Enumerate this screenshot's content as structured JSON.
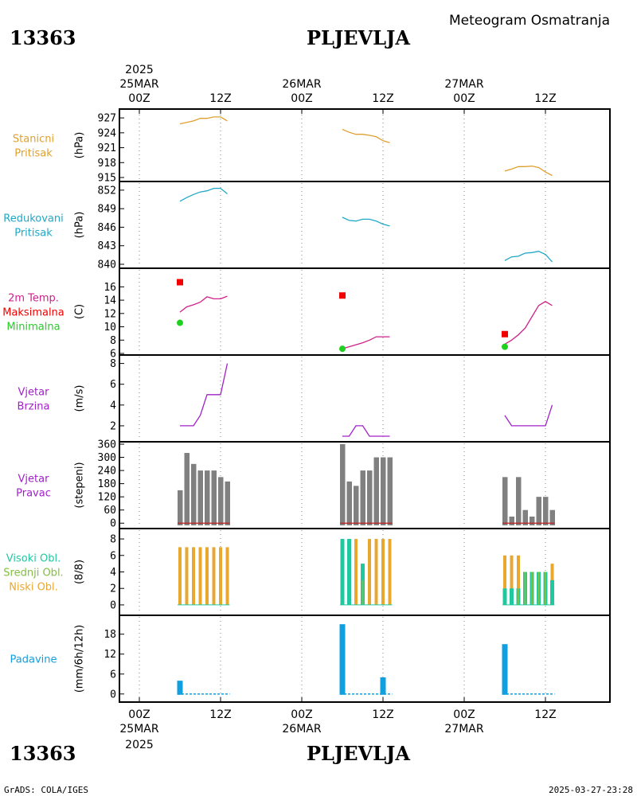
{
  "header": {
    "station_id": "13363",
    "station_name": "PLJEVLJA",
    "subtitle": "Meteogram Osmatranja"
  },
  "footer": {
    "credit": "GrADS: COLA/IGES",
    "timestamp": "2025-03-27-23:28"
  },
  "time_axis": {
    "year": "2025",
    "days": [
      {
        "date": "25MAR",
        "ticks": [
          "00Z",
          "12Z"
        ]
      },
      {
        "date": "26MAR",
        "ticks": [
          "00Z",
          "12Z"
        ]
      },
      {
        "date": "27MAR",
        "ticks": [
          "00Z",
          "12Z"
        ]
      }
    ]
  },
  "colors": {
    "pressure_station": "#e0a030",
    "pressure_reduced": "#20a8c8",
    "temperature": "#d0208a",
    "max_marker": "#f00000",
    "min_marker": "#20d020",
    "wind": "#a020c8",
    "wind_dir_bars": "#808080",
    "cloud_high": "#20c8a0",
    "cloud_mid": "#80c040",
    "cloud_low": "#e8a830",
    "precip": "#10a0e0"
  },
  "panels": [
    {
      "id": "p1",
      "labels": [
        "Stanicni",
        "Pritisak"
      ],
      "unit": "(hPa)",
      "ticks": [
        "927",
        "924",
        "921",
        "918",
        "915"
      ]
    },
    {
      "id": "p2",
      "labels": [
        "Redukovani",
        "Pritisak"
      ],
      "unit": "(hPa)",
      "ticks": [
        "852",
        "849",
        "846",
        "843",
        "840"
      ]
    },
    {
      "id": "p3",
      "labels": [
        "2m Temp.",
        "Maksimalna",
        "Minimalna"
      ],
      "unit": "(C)",
      "ticks": [
        "16",
        "14",
        "12",
        "10",
        "8",
        "6"
      ]
    },
    {
      "id": "p4",
      "labels": [
        "Vjetar",
        "Brzina"
      ],
      "unit": "(m/s)",
      "ticks": [
        "8",
        "6",
        "4",
        "2"
      ]
    },
    {
      "id": "p5",
      "labels": [
        "Vjetar",
        "Pravac"
      ],
      "unit": "(stepeni)",
      "ticks": [
        "360",
        "300",
        "240",
        "180",
        "120",
        "60",
        "0"
      ]
    },
    {
      "id": "p6",
      "labels": [
        "Visoki Obl.",
        "Srednji Obl.",
        "Niski Obl."
      ],
      "unit": "(8/8)",
      "ticks": [
        "8",
        "6",
        "4",
        "2",
        "0"
      ]
    },
    {
      "id": "p7",
      "labels": [
        "Padavine"
      ],
      "unit": "(mm/6h/12h)",
      "ticks": [
        "18",
        "12",
        "6",
        "0"
      ]
    }
  ],
  "chart_data": [
    {
      "type": "line",
      "title": "Stanicni Pritisak",
      "ylabel": "(hPa)",
      "ylim": [
        915,
        927.5
      ],
      "x_unit": "hours since 2025-03-25 00Z",
      "series": [
        {
          "segments": [
            [
              [
                6,
                925.8
              ],
              [
                7,
                926.1
              ],
              [
                8,
                926.4
              ],
              [
                9,
                926.9
              ],
              [
                10,
                926.9
              ],
              [
                11,
                927.2
              ],
              [
                12,
                927.2
              ],
              [
                13,
                926.4
              ]
            ],
            [
              [
                30,
                924.7
              ],
              [
                31,
                924.1
              ],
              [
                32,
                923.7
              ],
              [
                33,
                923.7
              ],
              [
                34,
                923.5
              ],
              [
                35,
                923.2
              ],
              [
                36,
                922.4
              ],
              [
                37,
                922.0
              ]
            ],
            [
              [
                54,
                916.3
              ],
              [
                55,
                916.7
              ],
              [
                56,
                917.2
              ],
              [
                57,
                917.2
              ],
              [
                58,
                917.3
              ],
              [
                59,
                917.0
              ],
              [
                60,
                916.1
              ],
              [
                61,
                915.4
              ]
            ]
          ]
        }
      ]
    },
    {
      "type": "line",
      "title": "Redukovani Pritisak",
      "ylabel": "(hPa)",
      "ylim": [
        840,
        852.5
      ],
      "series": [
        {
          "segments": [
            [
              [
                6,
                850.2
              ],
              [
                7,
                850.8
              ],
              [
                8,
                851.3
              ],
              [
                9,
                851.7
              ],
              [
                10,
                851.9
              ],
              [
                11,
                852.3
              ],
              [
                12,
                852.3
              ],
              [
                13,
                851.4
              ]
            ],
            [
              [
                30,
                847.6
              ],
              [
                31,
                847.1
              ],
              [
                32,
                847.0
              ],
              [
                33,
                847.3
              ],
              [
                34,
                847.3
              ],
              [
                35,
                847.0
              ],
              [
                36,
                846.5
              ],
              [
                37,
                846.2
              ]
            ],
            [
              [
                54,
                840.6
              ],
              [
                55,
                841.2
              ],
              [
                56,
                841.3
              ],
              [
                57,
                841.8
              ],
              [
                58,
                841.9
              ],
              [
                59,
                842.1
              ],
              [
                60,
                841.6
              ],
              [
                61,
                840.4
              ]
            ]
          ]
        }
      ]
    },
    {
      "type": "line",
      "title": "2m Temp.",
      "ylabel": "(C)",
      "ylim": [
        6,
        17
      ],
      "series": [
        {
          "name": "2m Temp.",
          "segments": [
            [
              [
                6,
                12.2
              ],
              [
                7,
                13.0
              ],
              [
                8,
                13.3
              ],
              [
                9,
                13.7
              ],
              [
                10,
                14.5
              ],
              [
                11,
                14.2
              ],
              [
                12,
                14.2
              ],
              [
                13,
                14.6
              ]
            ],
            [
              [
                30,
                6.7
              ],
              [
                31,
                7.0
              ],
              [
                32,
                7.3
              ],
              [
                33,
                7.6
              ],
              [
                34,
                8.0
              ],
              [
                35,
                8.5
              ],
              [
                36,
                8.5
              ],
              [
                37,
                8.5
              ]
            ],
            [
              [
                54,
                7.4
              ],
              [
                55,
                8.0
              ],
              [
                56,
                8.8
              ],
              [
                57,
                9.8
              ],
              [
                58,
                11.5
              ],
              [
                59,
                13.2
              ],
              [
                60,
                13.8
              ],
              [
                61,
                13.2
              ]
            ]
          ]
        },
        {
          "name": "Maksimalna",
          "points": [
            [
              6,
              16.7
            ],
            [
              30,
              14.7
            ],
            [
              54,
              8.9
            ]
          ]
        },
        {
          "name": "Minimalna",
          "points": [
            [
              6,
              10.6
            ],
            [
              30,
              6.7
            ],
            [
              54,
              7.0
            ]
          ]
        }
      ]
    },
    {
      "type": "line",
      "title": "Vjetar Brzina",
      "ylabel": "(m/s)",
      "ylim": [
        1,
        8.2
      ],
      "series": [
        {
          "segments": [
            [
              [
                6,
                2.0
              ],
              [
                7,
                2.0
              ],
              [
                8,
                2.0
              ],
              [
                9,
                3.0
              ],
              [
                10,
                5.0
              ],
              [
                11,
                5.0
              ],
              [
                12,
                5.0
              ],
              [
                13,
                8.0
              ]
            ],
            [
              [
                30,
                1.0
              ],
              [
                31,
                1.0
              ],
              [
                32,
                2.0
              ],
              [
                33,
                2.0
              ],
              [
                34,
                1.0
              ],
              [
                35,
                1.0
              ],
              [
                36,
                1.0
              ],
              [
                37,
                1.0
              ]
            ],
            [
              [
                54,
                3.0
              ],
              [
                55,
                2.0
              ],
              [
                56,
                2.0
              ],
              [
                57,
                2.0
              ],
              [
                58,
                2.0
              ],
              [
                59,
                2.0
              ],
              [
                60,
                2.0
              ],
              [
                61,
                4.0
              ]
            ]
          ]
        }
      ]
    },
    {
      "type": "bar",
      "title": "Vjetar Pravac",
      "ylabel": "(stepeni)",
      "ylim": [
        -10,
        360
      ],
      "bars": [
        [
          6,
          150
        ],
        [
          7,
          320
        ],
        [
          8,
          270
        ],
        [
          9,
          240
        ],
        [
          10,
          240
        ],
        [
          11,
          240
        ],
        [
          12,
          210
        ],
        [
          13,
          190
        ],
        [
          30,
          360
        ],
        [
          31,
          190
        ],
        [
          32,
          170
        ],
        [
          33,
          240
        ],
        [
          34,
          240
        ],
        [
          35,
          300
        ],
        [
          36,
          300
        ],
        [
          37,
          300
        ],
        [
          54,
          210
        ],
        [
          55,
          30
        ],
        [
          56,
          210
        ],
        [
          57,
          60
        ],
        [
          58,
          30
        ],
        [
          59,
          120
        ],
        [
          60,
          120
        ],
        [
          61,
          60
        ]
      ]
    },
    {
      "type": "bar",
      "title": "Oblacnost",
      "ylabel": "(8/8)",
      "ylim": [
        -0.2,
        8.2
      ],
      "series": [
        {
          "name": "Visoki Obl.",
          "bars": [
            [
              30,
              8
            ],
            [
              31,
              8
            ],
            [
              33,
              5
            ],
            [
              54,
              2
            ],
            [
              55,
              2
            ],
            [
              56,
              2
            ],
            [
              57,
              4
            ],
            [
              58,
              4
            ],
            [
              59,
              4
            ],
            [
              60,
              4
            ],
            [
              61,
              3
            ]
          ]
        },
        {
          "name": "Srednji Obl.",
          "bars": [
            [
              33,
              3
            ],
            [
              56,
              2
            ],
            [
              57,
              4
            ],
            [
              58,
              4
            ],
            [
              59,
              4
            ],
            [
              60,
              4
            ]
          ]
        },
        {
          "name": "Niski Obl.",
          "bars": [
            [
              6,
              7
            ],
            [
              7,
              7
            ],
            [
              8,
              7
            ],
            [
              9,
              7
            ],
            [
              10,
              7
            ],
            [
              11,
              7
            ],
            [
              12,
              7
            ],
            [
              13,
              7
            ],
            [
              30,
              8
            ],
            [
              31,
              8
            ],
            [
              32,
              8
            ],
            [
              33,
              5
            ],
            [
              34,
              8
            ],
            [
              35,
              8
            ],
            [
              36,
              8
            ],
            [
              37,
              8
            ],
            [
              54,
              6
            ],
            [
              55,
              6
            ],
            [
              56,
              6
            ],
            [
              57,
              4
            ],
            [
              58,
              4
            ],
            [
              59,
              4
            ],
            [
              60,
              4
            ],
            [
              61,
              5
            ]
          ]
        }
      ]
    },
    {
      "type": "bar",
      "title": "Padavine",
      "ylabel": "(mm/6h/12h)",
      "ylim": [
        -1,
        22
      ],
      "bars": [
        [
          6,
          4
        ],
        [
          30,
          21
        ],
        [
          36,
          5
        ],
        [
          54,
          15
        ]
      ]
    }
  ]
}
